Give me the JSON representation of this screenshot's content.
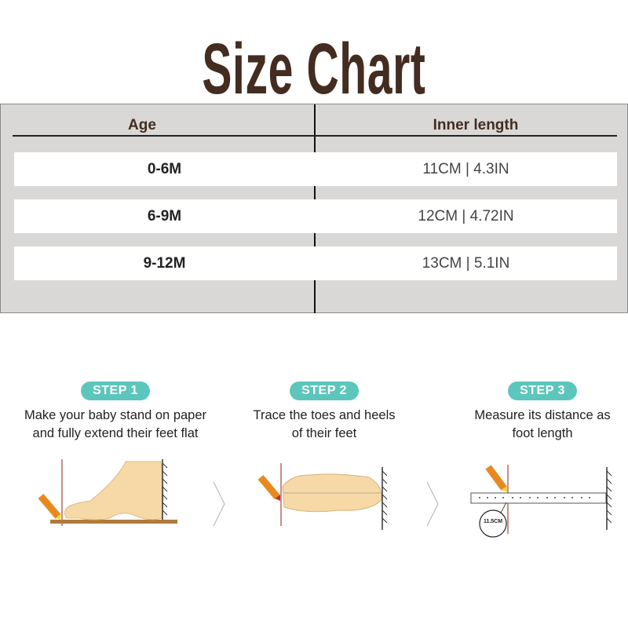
{
  "title": "Size Chart",
  "table": {
    "headers": [
      "Age",
      "Inner length"
    ],
    "rows": [
      {
        "age": "0-6M",
        "length": "11CM | 4.3IN"
      },
      {
        "age": "6-9M",
        "length": "12CM | 4.72IN"
      },
      {
        "age": "9-12M",
        "length": "13CM | 5.1IN"
      }
    ]
  },
  "steps": [
    {
      "badge": "STEP 1",
      "line1": "Make your baby stand on paper",
      "line2": "and fully extend their feet flat"
    },
    {
      "badge": "STEP 2",
      "line1": "Trace the toes and heels",
      "line2": "of their feet"
    },
    {
      "badge": "STEP 3",
      "line1": "Measure its distance as",
      "line2": "foot length"
    }
  ],
  "ruler_label": "11.5CM",
  "colors": {
    "title": "#432d20",
    "badge": "#5cc6bc",
    "table_bg": "#d9d8d6",
    "foot": "#f6d9a6",
    "pencil": "#e8891f"
  }
}
